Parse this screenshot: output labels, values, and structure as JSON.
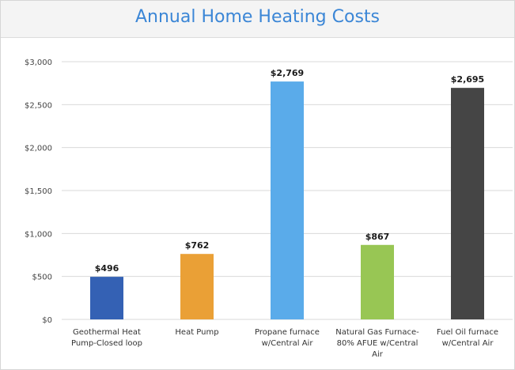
{
  "chart_data": {
    "type": "bar",
    "title": "Annual Home Heating Costs",
    "xlabel": "",
    "ylabel": "",
    "ylim": [
      0,
      3000
    ],
    "yticks": [
      0,
      500,
      1000,
      1500,
      2000,
      2500,
      3000
    ],
    "ytick_labels": [
      "$0",
      "$500",
      "$1,000",
      "$1,500",
      "$2,000",
      "$2,500",
      "$3,000"
    ],
    "grid": true,
    "legend": "none",
    "categories": [
      "Geothermal Heat Pump-Closed loop",
      "Heat Pump",
      "Propane furnace w/Central Air",
      "Natural Gas Furnace-80% AFUE w/Central Air",
      "Fuel Oil furnace w/Central Air"
    ],
    "category_label_lines": [
      [
        "Geothermal Heat",
        "Pump-Closed loop"
      ],
      [
        "Heat Pump"
      ],
      [
        "Propane furnace",
        "w/Central Air"
      ],
      [
        "Natural Gas Furnace-",
        "80% AFUE w/Central",
        "Air"
      ],
      [
        "Fuel Oil furnace",
        "w/Central Air"
      ]
    ],
    "values": [
      496,
      762,
      2769,
      867,
      2695
    ],
    "data_labels": [
      "$496",
      "$762",
      "$2,769",
      "$867",
      "$2,695"
    ],
    "colors": [
      "#3461b4",
      "#eaa036",
      "#5aabea",
      "#98c654",
      "#454545"
    ],
    "gridline_color": "#d9d9d9",
    "axis_text_color": "#444444"
  }
}
